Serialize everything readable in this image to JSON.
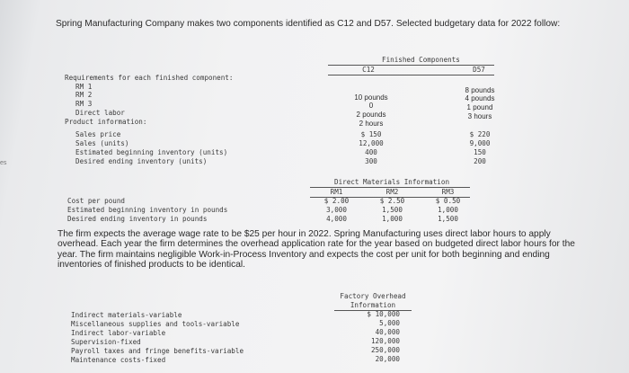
{
  "left_edge_text": "es",
  "intro": "Spring Manufacturing Company makes two components identified as C12 and D57. Selected budgetary data for 2022 follow:",
  "finished_components": {
    "heading": "Finished Components",
    "col1": "C12",
    "col2": "D57",
    "rows": [
      {
        "label": "Requirements for each finished component:",
        "c12": "",
        "d57": ""
      },
      {
        "label": "RM 1",
        "c12": "10 pounds",
        "d57": "8 pounds"
      },
      {
        "label": "RM 2",
        "c12": "0",
        "d57": "4 pounds"
      },
      {
        "label": "RM 3",
        "c12": "2 pounds",
        "d57": "1 pound"
      },
      {
        "label": "Direct labor",
        "c12": "2 hours",
        "d57": "3 hours"
      },
      {
        "label": "Product information:",
        "c12": "",
        "d57": ""
      },
      {
        "label": "Sales price",
        "c12": "$ 150",
        "d57": "$ 220"
      },
      {
        "label": "Sales (units)",
        "c12": "12,000",
        "d57": "9,000"
      },
      {
        "label": "Estimated beginning inventory (units)",
        "c12": "400",
        "d57": "150"
      },
      {
        "label": "Desired ending inventory (units)",
        "c12": "300",
        "d57": "200"
      }
    ]
  },
  "direct_materials": {
    "heading": "Direct Materials Information",
    "cols": [
      "RM1",
      "RM2",
      "RM3"
    ],
    "rows": [
      {
        "label": "Cost per pound",
        "values": [
          "$ 2.00",
          "$ 2.50",
          "$ 0.50"
        ]
      },
      {
        "label": "Estimated beginning inventory in pounds",
        "values": [
          "3,000",
          "1,500",
          "1,000"
        ]
      },
      {
        "label": "Desired ending inventory in pounds",
        "values": [
          "4,000",
          "1,000",
          "1,500"
        ]
      }
    ]
  },
  "narrative": "The firm expects the average wage rate to be $25 per hour in 2022. Spring Manufacturing uses direct labor hours to apply overhead. Each year the firm determines the overhead application rate for the year based on budgeted direct labor hours for the year. The firm maintains negligible Work-in-Process Inventory and expects the cost per unit for both beginning and ending inventories of finished products to be identical.",
  "overhead": {
    "heading_line1": "Factory Overhead",
    "heading_line2": "Information",
    "rows": [
      {
        "label": "Indirect materials-variable",
        "value": "$ 10,000"
      },
      {
        "label": "Miscellaneous supplies and tools-variable",
        "value": "5,000"
      },
      {
        "label": "Indirect labor-variable",
        "value": "40,000"
      },
      {
        "label": "Supervision-fixed",
        "value": "120,000"
      },
      {
        "label": "Payroll taxes and fringe benefits-variable",
        "value": "250,000"
      },
      {
        "label": "Maintenance costs-fixed",
        "value": "20,000"
      }
    ]
  }
}
